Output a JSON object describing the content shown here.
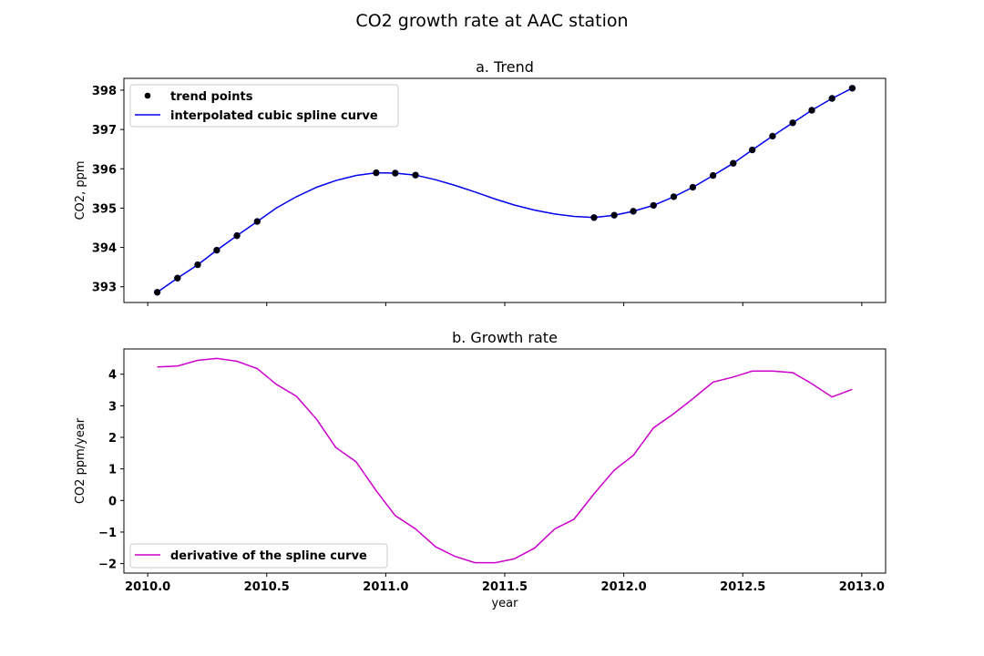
{
  "title": "CO2 growth rate at AAC station",
  "colors": {
    "trend": "#0000ee",
    "points": "#000000",
    "rate": "#cc00cc"
  },
  "chart_data": [
    {
      "type": "line",
      "subtitle": "a. Trend",
      "xlabel": "",
      "ylabel": "CO2, ppm",
      "xlim": [
        2009.9,
        2013.1
      ],
      "ylim": [
        392.6,
        398.3
      ],
      "xticks": [
        2010.0,
        2010.5,
        2011.0,
        2011.5,
        2012.0,
        2012.5,
        2013.0
      ],
      "yticks": [
        393,
        394,
        395,
        396,
        397,
        398
      ],
      "ytick_labels": [
        "393",
        "394",
        "395",
        "396",
        "397",
        "398"
      ],
      "legend": {
        "position": "top-left",
        "entries": [
          "trend points",
          "interpolated cubic spline curve"
        ]
      },
      "series": [
        {
          "name": "trend points",
          "kind": "scatter",
          "x": [
            2010.04,
            2010.125,
            2010.21,
            2010.29,
            2010.375,
            2010.46,
            2010.96,
            2011.04,
            2011.125,
            2011.875,
            2011.96,
            2012.04,
            2012.125,
            2012.21,
            2012.29,
            2012.375,
            2012.46,
            2012.54,
            2012.625,
            2012.71,
            2012.79,
            2012.875,
            2012.96
          ],
          "y": [
            392.86,
            393.22,
            393.56,
            393.93,
            394.3,
            394.66,
            395.9,
            395.89,
            395.84,
            394.76,
            394.82,
            394.92,
            395.07,
            395.29,
            395.53,
            395.83,
            396.14,
            396.48,
            396.83,
            397.17,
            397.49,
            397.79,
            398.05
          ]
        },
        {
          "name": "interpolated cubic spline curve",
          "kind": "line",
          "x": [
            2010.04,
            2010.125,
            2010.21,
            2010.29,
            2010.375,
            2010.46,
            2010.54,
            2010.625,
            2010.71,
            2010.79,
            2010.875,
            2010.96,
            2011.04,
            2011.125,
            2011.21,
            2011.29,
            2011.375,
            2011.46,
            2011.54,
            2011.625,
            2011.71,
            2011.79,
            2011.875,
            2011.96,
            2012.04,
            2012.125,
            2012.21,
            2012.29,
            2012.375,
            2012.46,
            2012.54,
            2012.625,
            2012.71,
            2012.79,
            2012.875,
            2012.96
          ],
          "y": [
            392.86,
            393.22,
            393.56,
            393.93,
            394.3,
            394.66,
            395.0,
            395.29,
            395.53,
            395.7,
            395.83,
            395.9,
            395.89,
            395.84,
            395.72,
            395.58,
            395.41,
            395.23,
            395.08,
            394.95,
            394.85,
            394.79,
            394.76,
            394.82,
            394.92,
            395.07,
            395.29,
            395.53,
            395.83,
            396.14,
            396.48,
            396.83,
            397.17,
            397.49,
            397.79,
            398.05
          ]
        }
      ]
    },
    {
      "type": "line",
      "subtitle": "b. Growth rate",
      "xlabel": "year",
      "ylabel": "CO2 ppm/year",
      "xlim": [
        2009.9,
        2013.1
      ],
      "ylim": [
        -2.3,
        4.8
      ],
      "xticks": [
        2010.0,
        2010.5,
        2011.0,
        2011.5,
        2012.0,
        2012.5,
        2013.0
      ],
      "xtick_labels": [
        "2010.0",
        "2010.5",
        "2011.0",
        "2011.5",
        "2012.0",
        "2012.5",
        "2013.0"
      ],
      "yticks": [
        -2,
        -1,
        0,
        1,
        2,
        3,
        4
      ],
      "ytick_labels": [
        "−2",
        "−1",
        "0",
        "1",
        "2",
        "3",
        "4"
      ],
      "legend": {
        "position": "bottom-left",
        "entries": [
          "derivative of the spline curve"
        ]
      },
      "series": [
        {
          "name": "derivative of the spline curve",
          "kind": "line",
          "x": [
            2010.04,
            2010.125,
            2010.21,
            2010.29,
            2010.375,
            2010.46,
            2010.54,
            2010.625,
            2010.71,
            2010.79,
            2010.875,
            2010.96,
            2011.04,
            2011.125,
            2011.21,
            2011.29,
            2011.375,
            2011.46,
            2011.54,
            2011.625,
            2011.71,
            2011.79,
            2011.875,
            2011.96,
            2012.04,
            2012.125,
            2012.21,
            2012.29,
            2012.375,
            2012.46,
            2012.54,
            2012.625,
            2012.71,
            2012.79,
            2012.875,
            2012.96
          ],
          "y": [
            4.23,
            4.26,
            4.44,
            4.5,
            4.41,
            4.18,
            3.68,
            3.3,
            2.57,
            1.68,
            1.23,
            0.31,
            -0.48,
            -0.9,
            -1.47,
            -1.77,
            -1.97,
            -1.97,
            -1.85,
            -1.51,
            -0.9,
            -0.6,
            0.21,
            0.96,
            1.43,
            2.3,
            2.75,
            3.22,
            3.75,
            3.91,
            4.1,
            4.1,
            4.05,
            3.7,
            3.28,
            3.52
          ]
        }
      ]
    }
  ]
}
